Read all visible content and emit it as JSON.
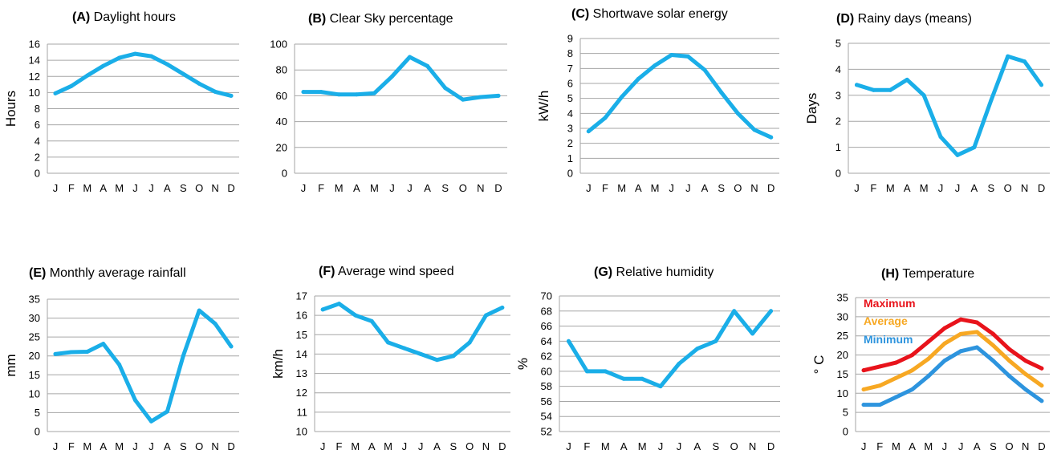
{
  "chart_data": [
    {
      "type": "line",
      "panel_letter": "(A)",
      "title": "Daylight hours",
      "ylabel": "Hours",
      "categories": [
        "J",
        "F",
        "M",
        "A",
        "M",
        "J",
        "J",
        "A",
        "S",
        "O",
        "N",
        "D"
      ],
      "ylim": [
        0,
        16
      ],
      "yticks": [
        0,
        2,
        4,
        6,
        8,
        10,
        12,
        14,
        16
      ],
      "grid": true,
      "series": [
        {
          "color": "#1aaee8",
          "values": [
            9.9,
            10.8,
            12.1,
            13.3,
            14.3,
            14.8,
            14.5,
            13.5,
            12.3,
            11.1,
            10.1,
            9.6
          ]
        }
      ]
    },
    {
      "type": "line",
      "panel_letter": "(B)",
      "title": "Clear Sky percentage",
      "ylabel": "",
      "categories": [
        "J",
        "F",
        "M",
        "A",
        "M",
        "J",
        "J",
        "A",
        "S",
        "O",
        "N",
        "D"
      ],
      "ylim": [
        0,
        100
      ],
      "yticks": [
        0,
        20,
        40,
        60,
        80,
        100
      ],
      "grid": true,
      "series": [
        {
          "color": "#1aaee8",
          "values": [
            63,
            63,
            61,
            61,
            62,
            75,
            90,
            83,
            66,
            57,
            59,
            60
          ]
        }
      ]
    },
    {
      "type": "line",
      "panel_letter": "(C)",
      "title": "Shortwave solar energy",
      "ylabel": "kW/h",
      "categories": [
        "J",
        "F",
        "M",
        "A",
        "M",
        "J",
        "J",
        "A",
        "S",
        "O",
        "N",
        "D"
      ],
      "ylim": [
        0,
        9
      ],
      "yticks": [
        0,
        1,
        2,
        3,
        4,
        5,
        6,
        7,
        8,
        9
      ],
      "grid": true,
      "series": [
        {
          "color": "#1aaee8",
          "values": [
            2.8,
            3.7,
            5.1,
            6.3,
            7.2,
            7.9,
            7.8,
            6.9,
            5.4,
            4.0,
            2.9,
            2.4
          ]
        }
      ]
    },
    {
      "type": "line",
      "panel_letter": "(D)",
      "title": "Rainy days (means)",
      "ylabel": "Days",
      "categories": [
        "J",
        "F",
        "M",
        "A",
        "M",
        "J",
        "J",
        "A",
        "S",
        "O",
        "N",
        "D"
      ],
      "ylim": [
        0,
        5
      ],
      "yticks": [
        0,
        1,
        2,
        3,
        4,
        5
      ],
      "grid": true,
      "series": [
        {
          "color": "#1aaee8",
          "values": [
            3.4,
            3.2,
            3.2,
            3.6,
            3.0,
            1.4,
            0.7,
            1.0,
            2.8,
            4.5,
            4.3,
            3.4
          ]
        }
      ]
    },
    {
      "type": "line",
      "panel_letter": "(E)",
      "title": "Monthly average rainfall",
      "ylabel": "mm",
      "categories": [
        "J",
        "F",
        "M",
        "A",
        "M",
        "J",
        "J",
        "A",
        "S",
        "O",
        "N",
        "D"
      ],
      "ylim": [
        0,
        35
      ],
      "yticks": [
        0,
        5,
        10,
        15,
        20,
        25,
        30,
        35
      ],
      "grid": true,
      "series": [
        {
          "color": "#1aaee8",
          "values": [
            20.5,
            21.0,
            21.1,
            23.2,
            17.7,
            8.3,
            2.7,
            5.3,
            20.0,
            32.0,
            28.5,
            22.5
          ]
        }
      ]
    },
    {
      "type": "line",
      "panel_letter": "(F)",
      "title": "Average wind speed",
      "ylabel": "km/h",
      "categories": [
        "J",
        "F",
        "M",
        "A",
        "M",
        "J",
        "J",
        "A",
        "S",
        "O",
        "N",
        "D"
      ],
      "ylim": [
        10,
        17
      ],
      "yticks": [
        10,
        11,
        12,
        13,
        14,
        15,
        16,
        17
      ],
      "grid": true,
      "series": [
        {
          "color": "#1aaee8",
          "values": [
            16.3,
            16.6,
            16.0,
            15.7,
            14.6,
            14.3,
            14.0,
            13.7,
            13.9,
            14.6,
            16.0,
            16.4
          ]
        }
      ]
    },
    {
      "type": "line",
      "panel_letter": "(G)",
      "title": "Relative humidity",
      "ylabel": "%",
      "categories": [
        "J",
        "F",
        "M",
        "A",
        "M",
        "J",
        "J",
        "A",
        "S",
        "O",
        "N",
        "D"
      ],
      "ylim": [
        52,
        70
      ],
      "yticks": [
        52,
        54,
        56,
        58,
        60,
        62,
        64,
        66,
        68,
        70
      ],
      "grid": true,
      "series": [
        {
          "color": "#1aaee8",
          "values": [
            64,
            60,
            60,
            59,
            59,
            58,
            61,
            63,
            64,
            68,
            65,
            68
          ]
        }
      ]
    },
    {
      "type": "line",
      "panel_letter": "(H)",
      "title": "Temperature",
      "ylabel": "° C",
      "categories": [
        "J",
        "F",
        "M",
        "A",
        "M",
        "J",
        "J",
        "A",
        "S",
        "O",
        "N",
        "D"
      ],
      "ylim": [
        0,
        35
      ],
      "yticks": [
        0,
        5,
        10,
        15,
        20,
        25,
        30,
        35
      ],
      "grid": true,
      "legend": "top-left",
      "series": [
        {
          "name": "Maximum",
          "color": "#e8131b",
          "values": [
            16,
            17,
            18,
            20,
            23.5,
            27,
            29.3,
            28.5,
            25.5,
            21.5,
            18.5,
            16.5
          ]
        },
        {
          "name": "Average",
          "color": "#f7a823",
          "values": [
            11,
            12,
            14,
            16,
            19,
            23,
            25.5,
            26,
            22.5,
            18.5,
            15,
            12
          ]
        },
        {
          "name": "Minimum",
          "color": "#2d94de",
          "values": [
            7,
            7,
            9,
            11,
            14.5,
            18.5,
            21,
            22,
            18.5,
            14.5,
            11,
            8
          ]
        }
      ]
    }
  ]
}
